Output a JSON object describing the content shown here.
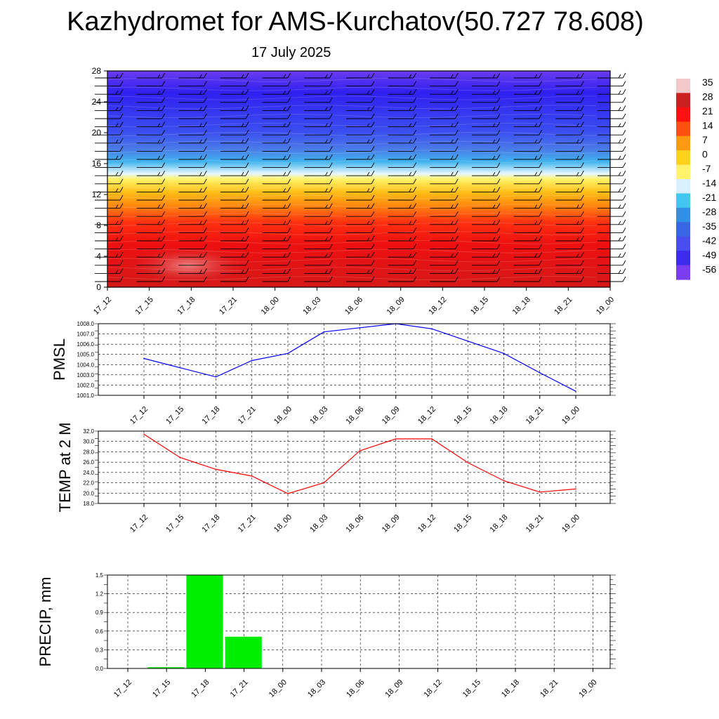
{
  "title": "Kazhydromet for AMS-Kurchatov(50.727 78.608)",
  "subtitle": "17 July 2025",
  "time_labels": [
    "17_12",
    "17_15",
    "17_18",
    "17_21",
    "18_00",
    "18_03",
    "18_06",
    "18_09",
    "18_12",
    "18_15",
    "18_18",
    "18_21",
    "19_00"
  ],
  "chart_data": [
    {
      "type": "heatmap",
      "title": "",
      "xlabel": "",
      "ylabel": "",
      "x": [
        "17_12",
        "17_15",
        "17_18",
        "17_21",
        "18_00",
        "18_03",
        "18_06",
        "18_09",
        "18_12",
        "18_15",
        "18_18",
        "18_21",
        "19_00"
      ],
      "y_ticks": [
        "0",
        "4",
        "8",
        "12",
        "16",
        "20",
        "24",
        "28"
      ],
      "ylim": [
        0,
        28
      ],
      "colorbar_labels": [
        "35",
        "28",
        "21",
        "14",
        "7",
        "0",
        "-7",
        "-14",
        "-21",
        "-28",
        "-35",
        "-42",
        "-49",
        "-56"
      ],
      "colorbar_range": [
        -60,
        38
      ],
      "colorbar_colors": [
        "#f2c8c8",
        "#cc1f1f",
        "#ff1010",
        "#ff5010",
        "#ff9a10",
        "#ffd21a",
        "#fff36a",
        "#d8f0ff",
        "#40c8f0",
        "#3090e8",
        "#3866e6",
        "#4a4ef0",
        "#3c2cf0",
        "#7a3cf0"
      ],
      "grid": false,
      "legend": "right"
    },
    {
      "type": "line",
      "title": "",
      "xlabel": "",
      "ylabel": "PMSL",
      "x": [
        "17_12",
        "17_15",
        "17_18",
        "17_21",
        "18_00",
        "18_03",
        "18_06",
        "18_09",
        "18_12",
        "18_15",
        "18_18",
        "18_21",
        "19_00"
      ],
      "series": [
        {
          "values": [
            1004.6,
            1003.7,
            1002.8,
            1004.4,
            1005.1,
            1007.2,
            1007.6,
            1008.0,
            1007.5,
            1006.3,
            1005.1,
            1003.2,
            1001.4
          ]
        }
      ],
      "y_ticks": [
        "1001.0",
        "1002.0",
        "1003.0",
        "1004.0",
        "1005.0",
        "1006.0",
        "1007.0",
        "1008.0"
      ],
      "ylim": [
        1001.0,
        1008.0
      ],
      "color": "#0000ff",
      "grid": true
    },
    {
      "type": "line",
      "title": "",
      "xlabel": "",
      "ylabel": "TEMP at 2 M",
      "x": [
        "17_12",
        "17_15",
        "17_18",
        "17_21",
        "18_00",
        "18_03",
        "18_06",
        "18_09",
        "18_12",
        "18_15",
        "18_18",
        "18_21",
        "19_00"
      ],
      "series": [
        {
          "values": [
            31.4,
            26.9,
            24.6,
            23.3,
            19.9,
            22.0,
            28.2,
            30.5,
            30.5,
            25.9,
            22.4,
            20.2,
            20.8
          ]
        }
      ],
      "y_ticks": [
        "18.0",
        "20.0",
        "22.0",
        "24.0",
        "26.0",
        "28.0",
        "30.0",
        "32.0"
      ],
      "ylim": [
        18.0,
        32.0
      ],
      "color": "#ff0000",
      "grid": true
    },
    {
      "type": "bar",
      "title": "",
      "xlabel": "",
      "ylabel": "PRECIP, mm",
      "categories": [
        "17_12",
        "17_15",
        "17_18",
        "17_21",
        "18_00",
        "18_03",
        "18_06",
        "18_09",
        "18_12",
        "18_15",
        "18_18",
        "18_21",
        "19_00"
      ],
      "values": [
        0.0,
        0.02,
        1.5,
        0.51,
        0,
        0,
        0,
        0,
        0,
        0,
        0,
        0,
        0
      ],
      "y_ticks": [
        "0.0",
        "0.3",
        "0.6",
        "0.9",
        "1.2",
        "1.5"
      ],
      "ylim": [
        0.0,
        1.5
      ],
      "color": "#00ee00",
      "grid": true
    }
  ]
}
